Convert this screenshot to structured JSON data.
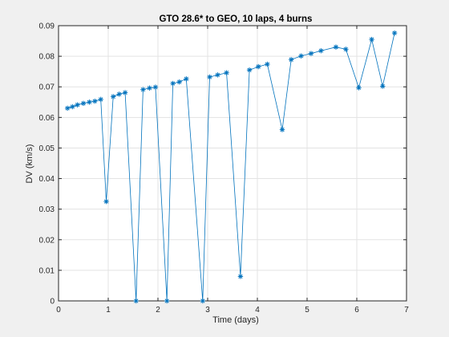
{
  "colors": {
    "figure_background": "#f0f0f0",
    "axes_background": "#ffffff",
    "axis_color": "#262626",
    "grid_color": "#e3e3e3",
    "series_color": "#0072bd"
  },
  "chart_data": {
    "type": "line",
    "title": "GTO 28.6* to GEO, 10 laps, 4 burns",
    "xlabel": "Time (days)",
    "ylabel": "DV (km/s)",
    "xlim": [
      0,
      7
    ],
    "ylim": [
      0,
      0.09
    ],
    "xticks": [
      0,
      1,
      2,
      3,
      4,
      5,
      6,
      7
    ],
    "yticks": [
      0,
      0.01,
      0.02,
      0.03,
      0.04,
      0.05,
      0.06,
      0.07,
      0.08,
      0.09
    ],
    "xtick_labels": [
      "0",
      "1",
      "2",
      "3",
      "4",
      "5",
      "6",
      "7"
    ],
    "ytick_labels": [
      "0",
      "0.01",
      "0.02",
      "0.03",
      "0.04",
      "0.05",
      "0.06",
      "0.07",
      "0.08",
      "0.09"
    ],
    "grid": true,
    "marker": "asterisk",
    "series": [
      {
        "x": [
          0.18,
          0.28,
          0.38,
          0.5,
          0.62,
          0.73,
          0.85,
          0.96,
          1.1,
          1.22,
          1.34,
          1.56,
          1.7,
          1.83,
          1.95,
          2.18,
          2.3,
          2.43,
          2.57,
          2.9,
          3.04,
          3.2,
          3.38,
          3.66,
          3.84,
          4.02,
          4.2,
          4.5,
          4.68,
          4.88,
          5.08,
          5.28,
          5.58,
          5.78,
          6.04,
          6.3,
          6.52,
          6.76
        ],
        "y": [
          0.063,
          0.0635,
          0.0641,
          0.0646,
          0.065,
          0.0653,
          0.0659,
          0.0325,
          0.0668,
          0.0676,
          0.0681,
          0.0,
          0.0691,
          0.0696,
          0.0699,
          0.0,
          0.0711,
          0.0716,
          0.0726,
          0.0,
          0.0732,
          0.0739,
          0.0746,
          0.008,
          0.0755,
          0.0766,
          0.0774,
          0.056,
          0.0789,
          0.0801,
          0.0809,
          0.0818,
          0.083,
          0.0823,
          0.0697,
          0.0855,
          0.0702,
          0.0876
        ]
      }
    ]
  }
}
